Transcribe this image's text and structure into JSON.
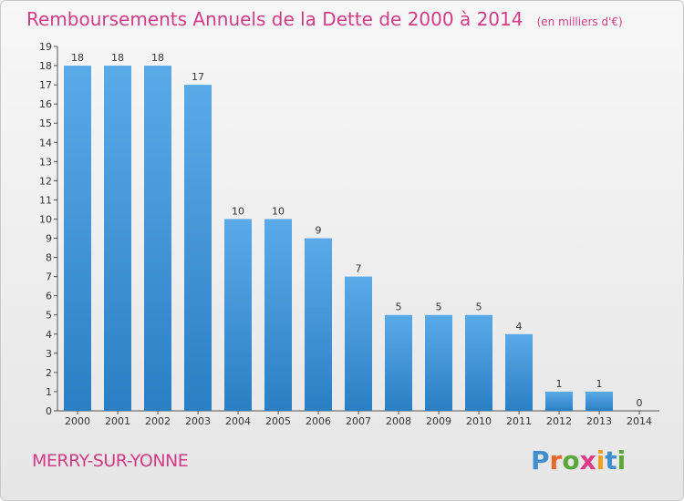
{
  "chart_data": {
    "type": "bar",
    "title": "Remboursements Annuels de la Dette de 2000 à 2014",
    "subtitle": "(en milliers d'€)",
    "categories": [
      "2000",
      "2001",
      "2002",
      "2003",
      "2004",
      "2005",
      "2006",
      "2007",
      "2008",
      "2009",
      "2010",
      "2011",
      "2012",
      "2013",
      "2014"
    ],
    "values": [
      18,
      18,
      18,
      17,
      10,
      10,
      9,
      7,
      5,
      5,
      5,
      4,
      1,
      1,
      0
    ],
    "ylim": [
      0,
      19
    ],
    "yticks": [
      0,
      1,
      2,
      3,
      4,
      5,
      6,
      7,
      8,
      9,
      10,
      11,
      12,
      13,
      14,
      15,
      16,
      17,
      18,
      19
    ],
    "ytick_labels": [
      "0",
      "1",
      "2",
      "3",
      "4",
      "5",
      "6",
      "7",
      "8",
      "9",
      "10",
      "11",
      "12",
      "13",
      "14",
      "15",
      "16",
      "17",
      "18",
      "19"
    ],
    "grid": false,
    "bar_color_top": "#5aaae8",
    "bar_color_bottom": "#2a7fc4"
  },
  "commune": "MERRY-SUR-YONNE",
  "logo": {
    "text": "Proxiti",
    "letter_colors": [
      "#3f8fd0",
      "#e8672a",
      "#5aa83a",
      "#e03b8a",
      "#f0a020",
      "#3f8fd0",
      "#5aa83a"
    ]
  },
  "colors": {
    "title": "#d23b87",
    "axis": "#555555",
    "text": "#333333"
  }
}
